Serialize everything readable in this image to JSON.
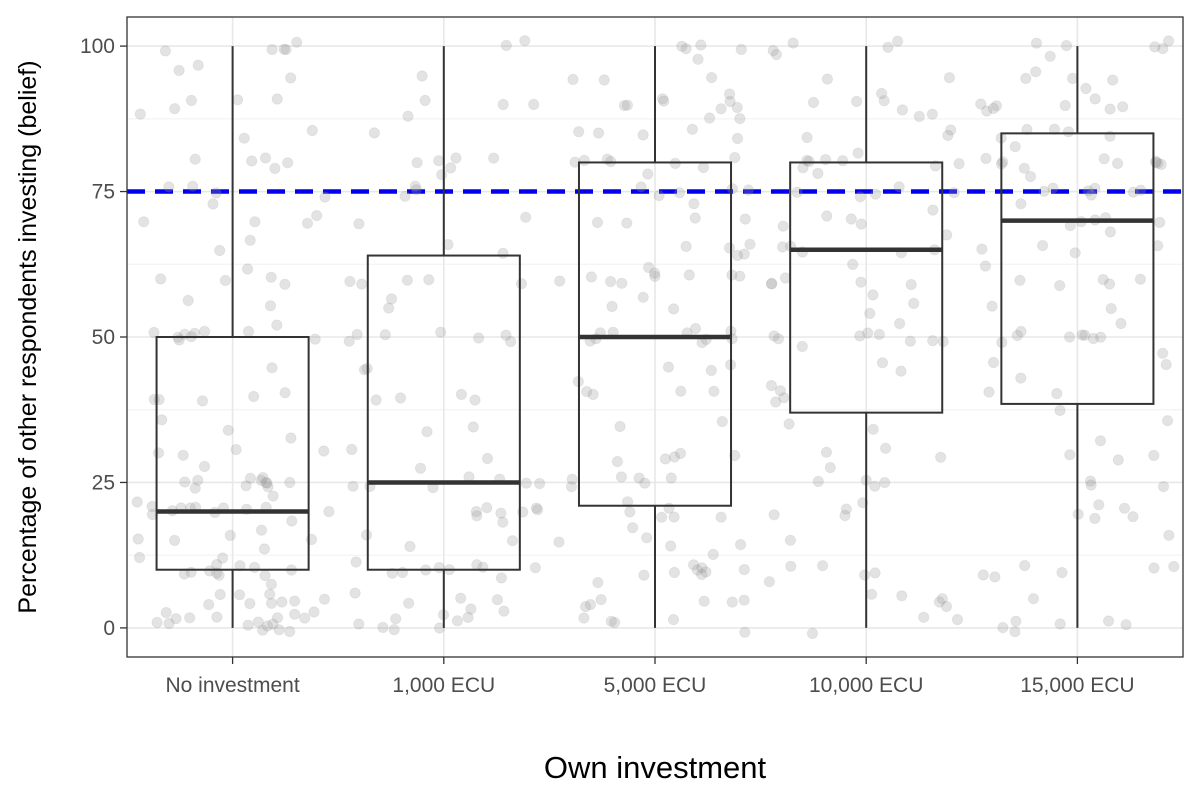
{
  "chart_data": {
    "type": "boxplot",
    "title": "",
    "xlabel": "Own investment",
    "ylabel": "Percentage of other respondents investing (belief)",
    "categories": [
      "No investment",
      "1,000 ECU",
      "5,000 ECU",
      "10,000 ECU",
      "15,000 ECU"
    ],
    "ylim": [
      -5,
      105
    ],
    "yticks": [
      0,
      25,
      50,
      75,
      100
    ],
    "grid": true,
    "boxes": [
      {
        "category": "No investment",
        "min": 0,
        "q1": 10,
        "median": 20,
        "q3": 50,
        "max": 100
      },
      {
        "category": "1,000 ECU",
        "min": 0,
        "q1": 10,
        "median": 25,
        "q3": 64,
        "max": 100
      },
      {
        "category": "5,000 ECU",
        "min": 0,
        "q1": 21,
        "median": 50,
        "q3": 80,
        "max": 100
      },
      {
        "category": "10,000 ECU",
        "min": 0,
        "q1": 37,
        "median": 65,
        "q3": 80,
        "max": 100
      },
      {
        "category": "15,000 ECU",
        "min": 0,
        "q1": 38.5,
        "median": 70,
        "q3": 85,
        "max": 100
      }
    ],
    "reference_line": {
      "y": 75,
      "style": "dashed",
      "color": "#0000ee"
    },
    "points": {
      "style": "jittered semi-transparent grey dots",
      "color": "#999999",
      "groups": [
        {
          "category": "No investment",
          "values": [
            0,
            0,
            0,
            0,
            0,
            0,
            0,
            1,
            1,
            1,
            1,
            2,
            2,
            2,
            2,
            3,
            3,
            4,
            5,
            5,
            5,
            5,
            5,
            5,
            5,
            6,
            8,
            10,
            10,
            10,
            10,
            10,
            10,
            10,
            10,
            10,
            10,
            12,
            12,
            14,
            15,
            15,
            15,
            15,
            17,
            18,
            20,
            20,
            20,
            20,
            20,
            20,
            20,
            20,
            20,
            20,
            20,
            22,
            22,
            24,
            25,
            25,
            25,
            25,
            25,
            25,
            25,
            25,
            25,
            25,
            28,
            30,
            30,
            30,
            30,
            33,
            34,
            35,
            40,
            40,
            40,
            40,
            40,
            45,
            50,
            50,
            50,
            50,
            50,
            50,
            50,
            50,
            50,
            52,
            55,
            57,
            60,
            60,
            60,
            60,
            62,
            65,
            67,
            70,
            70,
            70,
            70,
            72,
            75,
            75,
            75,
            75,
            78,
            80,
            80,
            80,
            80,
            85,
            85,
            88,
            90,
            90,
            90,
            90,
            95,
            95,
            96,
            99,
            100,
            100,
            100,
            100
          ]
        },
        {
          "category": "1,000 ECU",
          "values": [
            0,
            0,
            1,
            1,
            1,
            1,
            2,
            2,
            3,
            3,
            5,
            5,
            5,
            5,
            8,
            10,
            10,
            10,
            10,
            10,
            10,
            10,
            10,
            12,
            15,
            15,
            15,
            18,
            20,
            20,
            20,
            20,
            20,
            20,
            20,
            24,
            25,
            25,
            25,
            25,
            25,
            25,
            28,
            30,
            30,
            33,
            35,
            40,
            40,
            40,
            40,
            45,
            45,
            50,
            50,
            50,
            50,
            50,
            50,
            50,
            55,
            56,
            60,
            60,
            60,
            60,
            60,
            65,
            65,
            70,
            70,
            75,
            75,
            75,
            78,
            80,
            80,
            80,
            80,
            80,
            85,
            88,
            90,
            90,
            90,
            95,
            100,
            100
          ]
        },
        {
          "category": "5,000 ECU",
          "values": [
            0,
            1,
            1,
            1,
            2,
            3,
            5,
            5,
            5,
            5,
            5,
            8,
            10,
            10,
            10,
            10,
            10,
            10,
            10,
            10,
            12,
            15,
            15,
            15,
            15,
            18,
            20,
            20,
            20,
            20,
            20,
            22,
            25,
            25,
            25,
            25,
            25,
            25,
            28,
            30,
            30,
            30,
            30,
            35,
            36,
            40,
            40,
            40,
            40,
            42,
            45,
            45,
            45,
            50,
            50,
            50,
            50,
            50,
            50,
            50,
            50,
            50,
            52,
            55,
            55,
            57,
            60,
            60,
            60,
            60,
            60,
            60,
            60,
            60,
            60,
            62,
            65,
            65,
            65,
            65,
            65,
            70,
            70,
            70,
            70,
            72,
            75,
            75,
            75,
            75,
            75,
            78,
            80,
            80,
            80,
            80,
            80,
            80,
            80,
            85,
            85,
            85,
            85,
            85,
            87,
            88,
            90,
            90,
            90,
            90,
            90,
            90,
            90,
            92,
            95,
            95,
            95,
            98,
            100,
            100,
            100,
            100
          ]
        },
        {
          "category": "10,000 ECU",
          "values": [
            0,
            1,
            2,
            3,
            4,
            5,
            5,
            6,
            8,
            10,
            10,
            10,
            10,
            15,
            20,
            20,
            20,
            22,
            25,
            25,
            25,
            25,
            28,
            30,
            30,
            30,
            34,
            35,
            38,
            40,
            40,
            42,
            45,
            45,
            48,
            50,
            50,
            50,
            50,
            50,
            50,
            50,
            50,
            52,
            55,
            55,
            58,
            60,
            60,
            60,
            60,
            60,
            62,
            65,
            65,
            65,
            65,
            65,
            68,
            70,
            70,
            70,
            70,
            72,
            75,
            75,
            75,
            75,
            75,
            78,
            80,
            80,
            80,
            80,
            80,
            80,
            80,
            82,
            85,
            85,
            85,
            87,
            88,
            90,
            90,
            90,
            90,
            92,
            95,
            95,
            98,
            100,
            100,
            100,
            100
          ]
        },
        {
          "category": "15,000 ECU",
          "values": [
            0,
            0,
            1,
            1,
            1,
            2,
            5,
            8,
            10,
            10,
            10,
            10,
            10,
            15,
            18,
            20,
            20,
            20,
            22,
            25,
            25,
            25,
            28,
            30,
            30,
            32,
            35,
            38,
            40,
            40,
            42,
            45,
            45,
            48,
            50,
            50,
            50,
            50,
            50,
            50,
            50,
            50,
            52,
            55,
            55,
            58,
            60,
            60,
            60,
            60,
            62,
            65,
            65,
            65,
            65,
            68,
            70,
            70,
            70,
            70,
            70,
            72,
            75,
            75,
            75,
            75,
            75,
            75,
            75,
            78,
            80,
            80,
            80,
            80,
            80,
            80,
            80,
            80,
            80,
            80,
            82,
            85,
            85,
            85,
            85,
            85,
            88,
            90,
            90,
            90,
            90,
            90,
            90,
            90,
            92,
            95,
            95,
            95,
            95,
            98,
            100,
            100,
            100,
            100,
            100
          ]
        }
      ]
    }
  }
}
